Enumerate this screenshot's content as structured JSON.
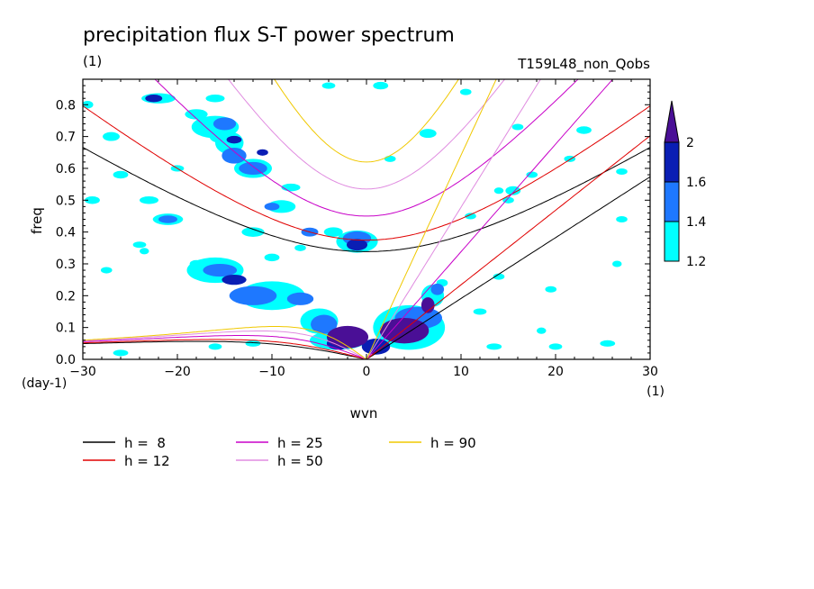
{
  "chart_data": {
    "type": "heatmap",
    "title": "precipitation flux S-T power spectrum",
    "subtitle_left": "(1)",
    "subtitle_right": "T159L48_non_Qobs",
    "xlabel": "wvn",
    "ylabel": "freq",
    "x_unit": "(1)",
    "y_unit": "(day-1)",
    "xlim": [
      -30,
      30
    ],
    "ylim": [
      0,
      0.88
    ],
    "x_ticks": [
      -30,
      -20,
      -10,
      0,
      10,
      20,
      30
    ],
    "y_ticks": [
      0.0,
      0.1,
      0.2,
      0.3,
      0.4,
      0.5,
      0.6,
      0.7,
      0.8
    ],
    "colorbar": {
      "levels": [
        1.2,
        1.4,
        1.6,
        2
      ],
      "colors": [
        "#00ffff",
        "#1e78ff",
        "#0a1eb4",
        "#4a0f96"
      ]
    },
    "curves": [
      {
        "label": "h =  8",
        "h": 8,
        "color": "#000000"
      },
      {
        "label": "h = 12",
        "h": 12,
        "color": "#e00000"
      },
      {
        "label": "h = 25",
        "h": 25,
        "color": "#c800c8"
      },
      {
        "label": "h = 50",
        "h": 50,
        "color": "#e08ce0"
      },
      {
        "label": "h = 90",
        "h": 90,
        "color": "#f0c800"
      }
    ],
    "shaded_regions": [
      {
        "x": -2,
        "y": 0.07,
        "level": 4,
        "rx": 2.2,
        "ry": 0.035
      },
      {
        "x": 4,
        "y": 0.09,
        "level": 4,
        "rx": 2.6,
        "ry": 0.04
      },
      {
        "x": 6.5,
        "y": 0.17,
        "level": 4,
        "rx": 0.7,
        "ry": 0.025
      },
      {
        "x": 1,
        "y": 0.04,
        "level": 3,
        "rx": 1.5,
        "ry": 0.025
      },
      {
        "x": -3,
        "y": 0.05,
        "level": 3,
        "rx": 1.2,
        "ry": 0.02
      },
      {
        "x": -1,
        "y": 0.36,
        "level": 3,
        "rx": 1.1,
        "ry": 0.018
      },
      {
        "x": -14,
        "y": 0.25,
        "level": 3,
        "rx": 1.3,
        "ry": 0.016
      },
      {
        "x": -22.5,
        "y": 0.82,
        "level": 3,
        "rx": 0.9,
        "ry": 0.012
      },
      {
        "x": -14,
        "y": 0.69,
        "level": 3,
        "rx": 0.8,
        "ry": 0.012
      },
      {
        "x": -11,
        "y": 0.65,
        "level": 3,
        "rx": 0.6,
        "ry": 0.01
      },
      {
        "x": -12,
        "y": 0.2,
        "level": 2,
        "rx": 2.5,
        "ry": 0.03
      },
      {
        "x": -7,
        "y": 0.19,
        "level": 2,
        "rx": 1.4,
        "ry": 0.02
      },
      {
        "x": -4.5,
        "y": 0.11,
        "level": 2,
        "rx": 1.4,
        "ry": 0.03
      },
      {
        "x": 5.5,
        "y": 0.13,
        "level": 2,
        "rx": 2.5,
        "ry": 0.035
      },
      {
        "x": 7.5,
        "y": 0.22,
        "level": 2,
        "rx": 0.7,
        "ry": 0.018
      },
      {
        "x": -1,
        "y": 0.38,
        "level": 2,
        "rx": 1.5,
        "ry": 0.022
      },
      {
        "x": -15.5,
        "y": 0.28,
        "level": 2,
        "rx": 1.8,
        "ry": 0.02
      },
      {
        "x": -14,
        "y": 0.64,
        "level": 2,
        "rx": 1.3,
        "ry": 0.025
      },
      {
        "x": -12,
        "y": 0.6,
        "level": 2,
        "rx": 1.5,
        "ry": 0.02
      },
      {
        "x": -21,
        "y": 0.44,
        "level": 2,
        "rx": 1.0,
        "ry": 0.012
      },
      {
        "x": -15,
        "y": 0.74,
        "level": 2,
        "rx": 1.2,
        "ry": 0.02
      },
      {
        "x": -10,
        "y": 0.48,
        "level": 2,
        "rx": 0.8,
        "ry": 0.012
      },
      {
        "x": -6,
        "y": 0.4,
        "level": 2,
        "rx": 0.9,
        "ry": 0.014
      },
      {
        "x": -16,
        "y": 0.28,
        "level": 1,
        "rx": 3.0,
        "ry": 0.04
      },
      {
        "x": -10,
        "y": 0.2,
        "level": 1,
        "rx": 3.5,
        "ry": 0.045
      },
      {
        "x": -5,
        "y": 0.12,
        "level": 1,
        "rx": 2.0,
        "ry": 0.04
      },
      {
        "x": -3,
        "y": 0.06,
        "level": 1,
        "rx": 3.0,
        "ry": 0.03
      },
      {
        "x": 4.5,
        "y": 0.1,
        "level": 1,
        "rx": 3.8,
        "ry": 0.07
      },
      {
        "x": 7,
        "y": 0.2,
        "level": 1,
        "rx": 1.2,
        "ry": 0.035
      },
      {
        "x": -1,
        "y": 0.37,
        "level": 1,
        "rx": 2.2,
        "ry": 0.035
      },
      {
        "x": -3.5,
        "y": 0.4,
        "level": 1,
        "rx": 1.0,
        "ry": 0.015
      },
      {
        "x": -22,
        "y": 0.82,
        "level": 1,
        "rx": 1.8,
        "ry": 0.016
      },
      {
        "x": -18,
        "y": 0.77,
        "level": 1,
        "rx": 1.2,
        "ry": 0.016
      },
      {
        "x": -14.5,
        "y": 0.68,
        "level": 1,
        "rx": 1.5,
        "ry": 0.035
      },
      {
        "x": -12,
        "y": 0.6,
        "level": 1,
        "rx": 2.0,
        "ry": 0.03
      },
      {
        "x": -16,
        "y": 0.73,
        "level": 1,
        "rx": 2.5,
        "ry": 0.035
      },
      {
        "x": -15.5,
        "y": 0.7,
        "level": 1,
        "rx": 1.1,
        "ry": 0.02
      },
      {
        "x": -9,
        "y": 0.48,
        "level": 1,
        "rx": 1.5,
        "ry": 0.02
      },
      {
        "x": -12,
        "y": 0.4,
        "level": 1,
        "rx": 1.2,
        "ry": 0.015
      },
      {
        "x": -23,
        "y": 0.5,
        "level": 1,
        "rx": 1.0,
        "ry": 0.012
      },
      {
        "x": -21,
        "y": 0.44,
        "level": 1,
        "rx": 1.6,
        "ry": 0.018
      },
      {
        "x": -29,
        "y": 0.5,
        "level": 1,
        "rx": 0.8,
        "ry": 0.012
      },
      {
        "x": -27,
        "y": 0.7,
        "level": 1,
        "rx": 0.9,
        "ry": 0.014
      },
      {
        "x": -26,
        "y": 0.58,
        "level": 1,
        "rx": 0.8,
        "ry": 0.012
      },
      {
        "x": -29.5,
        "y": 0.8,
        "level": 1,
        "rx": 0.6,
        "ry": 0.012
      },
      {
        "x": -20,
        "y": 0.6,
        "level": 1,
        "rx": 0.7,
        "ry": 0.01
      },
      {
        "x": -18,
        "y": 0.3,
        "level": 1,
        "rx": 0.7,
        "ry": 0.012
      },
      {
        "x": -16,
        "y": 0.82,
        "level": 1,
        "rx": 1.0,
        "ry": 0.012
      },
      {
        "x": -8,
        "y": 0.54,
        "level": 1,
        "rx": 1.0,
        "ry": 0.012
      },
      {
        "x": -10,
        "y": 0.32,
        "level": 1,
        "rx": 0.8,
        "ry": 0.012
      },
      {
        "x": -4,
        "y": 0.86,
        "level": 1,
        "rx": 0.7,
        "ry": 0.01
      },
      {
        "x": -7,
        "y": 0.35,
        "level": 1,
        "rx": 0.6,
        "ry": 0.01
      },
      {
        "x": -27.5,
        "y": 0.28,
        "level": 1,
        "rx": 0.6,
        "ry": 0.01
      },
      {
        "x": -24,
        "y": 0.36,
        "level": 1,
        "rx": 0.7,
        "ry": 0.01
      },
      {
        "x": -23.5,
        "y": 0.34,
        "level": 1,
        "rx": 0.5,
        "ry": 0.01
      },
      {
        "x": -26,
        "y": 0.02,
        "level": 1,
        "rx": 0.8,
        "ry": 0.01
      },
      {
        "x": -16,
        "y": 0.04,
        "level": 1,
        "rx": 0.7,
        "ry": 0.01
      },
      {
        "x": -12,
        "y": 0.05,
        "level": 1,
        "rx": 0.8,
        "ry": 0.01
      },
      {
        "x": 1.5,
        "y": 0.86,
        "level": 1,
        "rx": 0.8,
        "ry": 0.012
      },
      {
        "x": 2.5,
        "y": 0.63,
        "level": 1,
        "rx": 0.6,
        "ry": 0.01
      },
      {
        "x": 6.5,
        "y": 0.71,
        "level": 1,
        "rx": 0.9,
        "ry": 0.014
      },
      {
        "x": 15.5,
        "y": 0.53,
        "level": 1,
        "rx": 0.8,
        "ry": 0.014
      },
      {
        "x": 15,
        "y": 0.5,
        "level": 1,
        "rx": 0.6,
        "ry": 0.01
      },
      {
        "x": 16,
        "y": 0.73,
        "level": 1,
        "rx": 0.6,
        "ry": 0.01
      },
      {
        "x": 14,
        "y": 0.53,
        "level": 1,
        "rx": 0.5,
        "ry": 0.01
      },
      {
        "x": 17.5,
        "y": 0.58,
        "level": 1,
        "rx": 0.6,
        "ry": 0.01
      },
      {
        "x": 21.5,
        "y": 0.63,
        "level": 1,
        "rx": 0.6,
        "ry": 0.01
      },
      {
        "x": 23,
        "y": 0.72,
        "level": 1,
        "rx": 0.8,
        "ry": 0.012
      },
      {
        "x": 27,
        "y": 0.44,
        "level": 1,
        "rx": 0.6,
        "ry": 0.01
      },
      {
        "x": 27,
        "y": 0.59,
        "level": 1,
        "rx": 0.6,
        "ry": 0.01
      },
      {
        "x": 11,
        "y": 0.45,
        "level": 1,
        "rx": 0.6,
        "ry": 0.01
      },
      {
        "x": 8,
        "y": 0.24,
        "level": 1,
        "rx": 0.6,
        "ry": 0.012
      },
      {
        "x": 12,
        "y": 0.15,
        "level": 1,
        "rx": 0.7,
        "ry": 0.01
      },
      {
        "x": 19.5,
        "y": 0.22,
        "level": 1,
        "rx": 0.6,
        "ry": 0.01
      },
      {
        "x": 13.5,
        "y": 0.04,
        "level": 1,
        "rx": 0.8,
        "ry": 0.01
      },
      {
        "x": 20,
        "y": 0.04,
        "level": 1,
        "rx": 0.7,
        "ry": 0.01
      },
      {
        "x": 25.5,
        "y": 0.05,
        "level": 1,
        "rx": 0.8,
        "ry": 0.01
      },
      {
        "x": 18.5,
        "y": 0.09,
        "level": 1,
        "rx": 0.5,
        "ry": 0.01
      },
      {
        "x": 14,
        "y": 0.26,
        "level": 1,
        "rx": 0.6,
        "ry": 0.01
      },
      {
        "x": 26.5,
        "y": 0.3,
        "level": 1,
        "rx": 0.5,
        "ry": 0.01
      },
      {
        "x": 10.5,
        "y": 0.84,
        "level": 1,
        "rx": 0.6,
        "ry": 0.01
      }
    ]
  }
}
